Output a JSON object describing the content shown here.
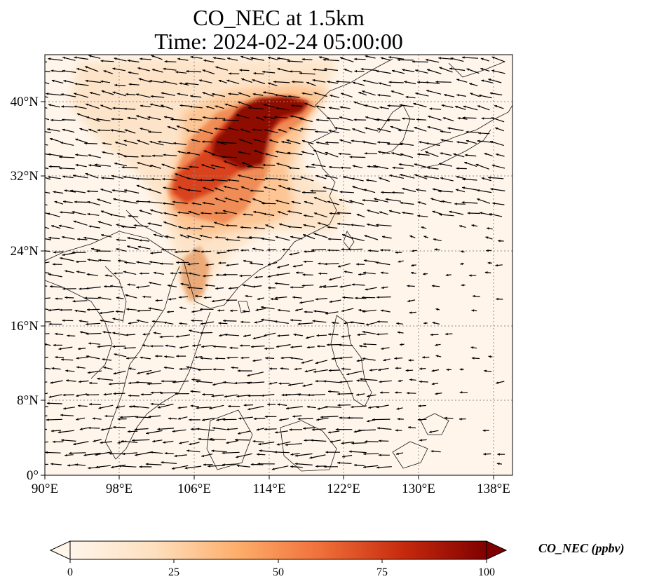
{
  "title": {
    "line1": "CO_NEC at 1.5km",
    "line2": "Time: 2024-02-24 05:00:00"
  },
  "axes": {
    "lon_ticks": [
      "90°E",
      "98°E",
      "106°E",
      "114°E",
      "122°E",
      "130°E",
      "138°E"
    ],
    "lat_ticks": [
      "0°",
      "8°N",
      "16°N",
      "24°N",
      "32°N",
      "40°N"
    ],
    "lon_range": [
      90,
      140
    ],
    "lat_range": [
      0,
      45
    ],
    "grid": "dotted"
  },
  "colorbar": {
    "label": "CO_NEC (ppbv)",
    "ticks": [
      "0",
      "25",
      "50",
      "75",
      "100"
    ],
    "range": [
      0,
      100
    ],
    "extend": "both",
    "colormap": [
      "#fff5eb",
      "#fdd9b1",
      "#fda35e",
      "#e85a2a",
      "#b51b0a",
      "#7f0000"
    ]
  },
  "colors": {
    "ocean": "#fff5eb",
    "coastline": "#1a1a1a",
    "grid": "#8c8c8c",
    "vector": "#000000"
  }
}
